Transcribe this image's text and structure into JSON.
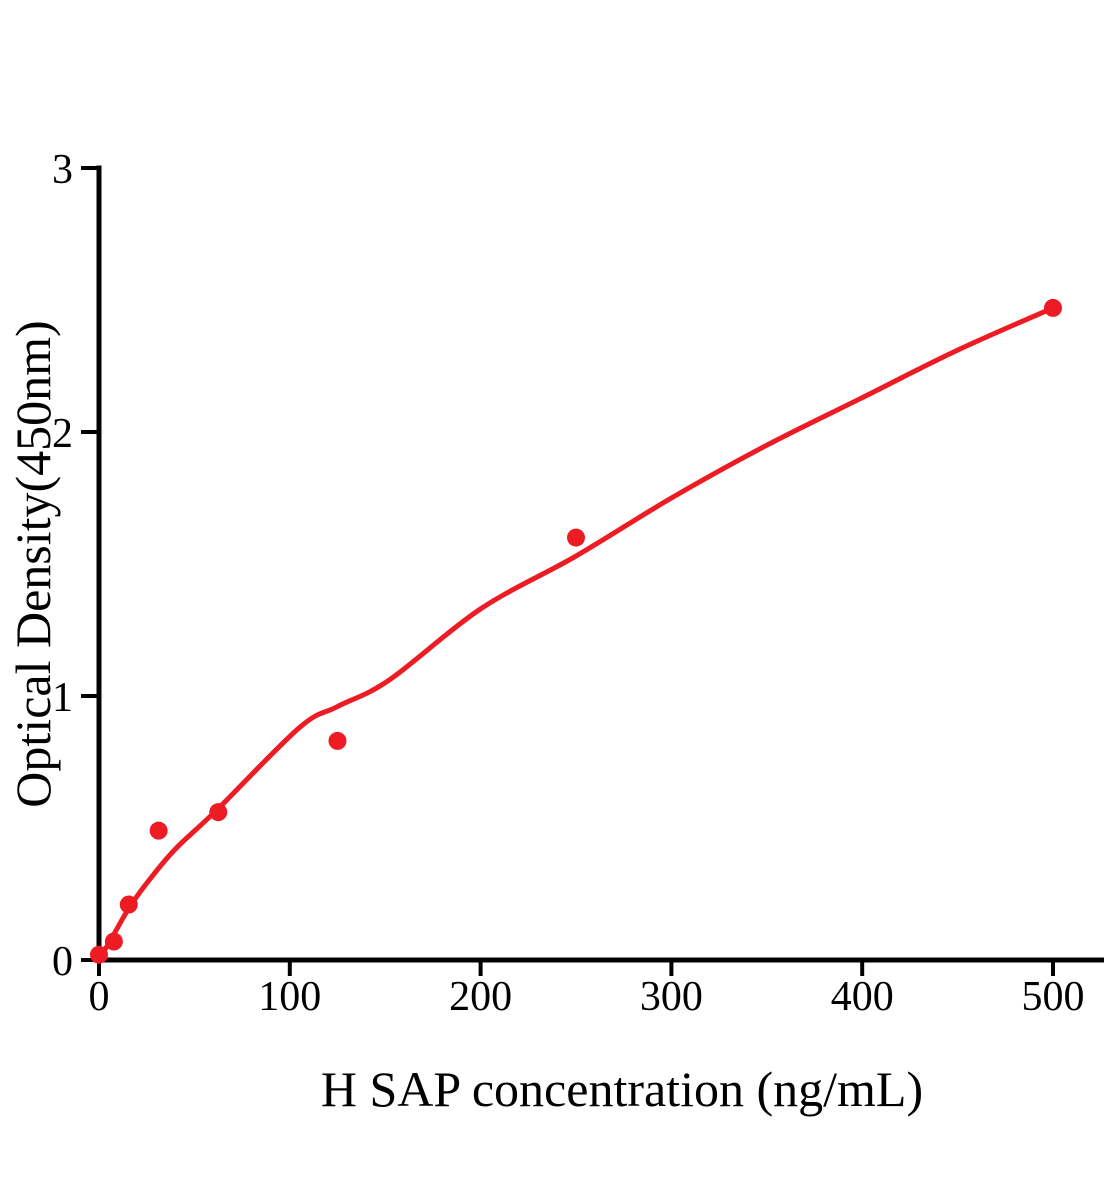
{
  "chart_data": {
    "type": "scatter",
    "title": "",
    "xlabel": "H SAP concentration (ng/mL)",
    "ylabel": "Optical Density(450nm)",
    "xlim": [
      0,
      527
    ],
    "ylim": [
      0,
      3
    ],
    "x_ticks": [
      0,
      100,
      200,
      300,
      400,
      500
    ],
    "x_tick_labels": [
      "0",
      "100",
      "200",
      "300",
      "400",
      "500"
    ],
    "y_ticks": [
      0,
      1,
      2,
      3
    ],
    "y_tick_labels": [
      "0",
      "1",
      "2",
      "3"
    ],
    "grid": false,
    "legend": "none",
    "colors": {
      "accent": "#ed1c24",
      "axis": "#000000",
      "background": "#ffffff"
    },
    "series": [
      {
        "name": "standard-points",
        "type": "scatter",
        "color": "#ed1c24",
        "points": [
          [
            0,
            0.02
          ],
          [
            7.8,
            0.07
          ],
          [
            15.6,
            0.21
          ],
          [
            31.25,
            0.49
          ],
          [
            62.5,
            0.56
          ],
          [
            125,
            0.83
          ],
          [
            250,
            1.6
          ],
          [
            500,
            2.47
          ]
        ]
      },
      {
        "name": "fit-curve",
        "type": "line",
        "color": "#ed1c24",
        "points": [
          [
            0,
            0
          ],
          [
            8,
            0.1
          ],
          [
            16,
            0.2
          ],
          [
            26,
            0.3
          ],
          [
            40,
            0.42
          ],
          [
            62,
            0.57
          ],
          [
            105,
            0.88
          ],
          [
            125,
            0.96
          ],
          [
            152,
            1.06
          ],
          [
            200,
            1.33
          ],
          [
            250,
            1.53
          ],
          [
            300,
            1.75
          ],
          [
            350,
            1.95
          ],
          [
            400,
            2.13
          ],
          [
            450,
            2.31
          ],
          [
            500,
            2.47
          ]
        ]
      }
    ]
  }
}
